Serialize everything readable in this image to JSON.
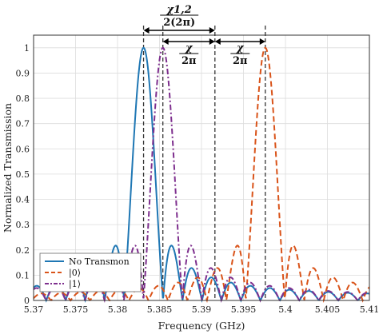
{
  "chart_data": {
    "type": "line",
    "xlabel": "Frequency (GHz)",
    "ylabel": "Normalized Transmission",
    "xlim": [
      5.37,
      5.41
    ],
    "ylim": [
      0,
      1.05
    ],
    "xticks": [
      "5.37",
      "5.375",
      "5.38",
      "5.385",
      "5.39",
      "5.395",
      "5.4",
      "5.405",
      "5.41"
    ],
    "yticks": [
      "0",
      "0.1",
      "0.2",
      "0.3",
      "0.4",
      "0.5",
      "0.6",
      "0.7",
      "0.8",
      "0.9",
      "1"
    ],
    "grid": true,
    "legend_position": "bottom-left",
    "series": [
      {
        "name": "No Transmon",
        "color": "#1f77b4",
        "style": "solid",
        "center": 5.3831,
        "peak": 1.0,
        "halfwidth": 0.00232
      },
      {
        "name": "|0⟩",
        "color": "#d95319",
        "style": "dashed",
        "center": 5.3976,
        "peak": 1.0,
        "halfwidth": 0.00232
      },
      {
        "name": "|1⟩",
        "color": "#7e2f8e",
        "style": "dashdot",
        "center": 5.3854,
        "peak": 1.0,
        "halfwidth": 0.00232
      }
    ],
    "vlines": [
      5.3831,
      5.3854,
      5.3916,
      5.3976
    ],
    "annotations": [
      {
        "text_num": "χ1,2",
        "text_den": "2(2π)",
        "from": 5.3831,
        "to": 5.3916
      },
      {
        "text_num": "χ",
        "text_den": "2π",
        "from": 5.3854,
        "to": 5.3916
      },
      {
        "text_num": "χ",
        "text_den": "2π",
        "from": 5.3916,
        "to": 5.3976
      }
    ]
  }
}
